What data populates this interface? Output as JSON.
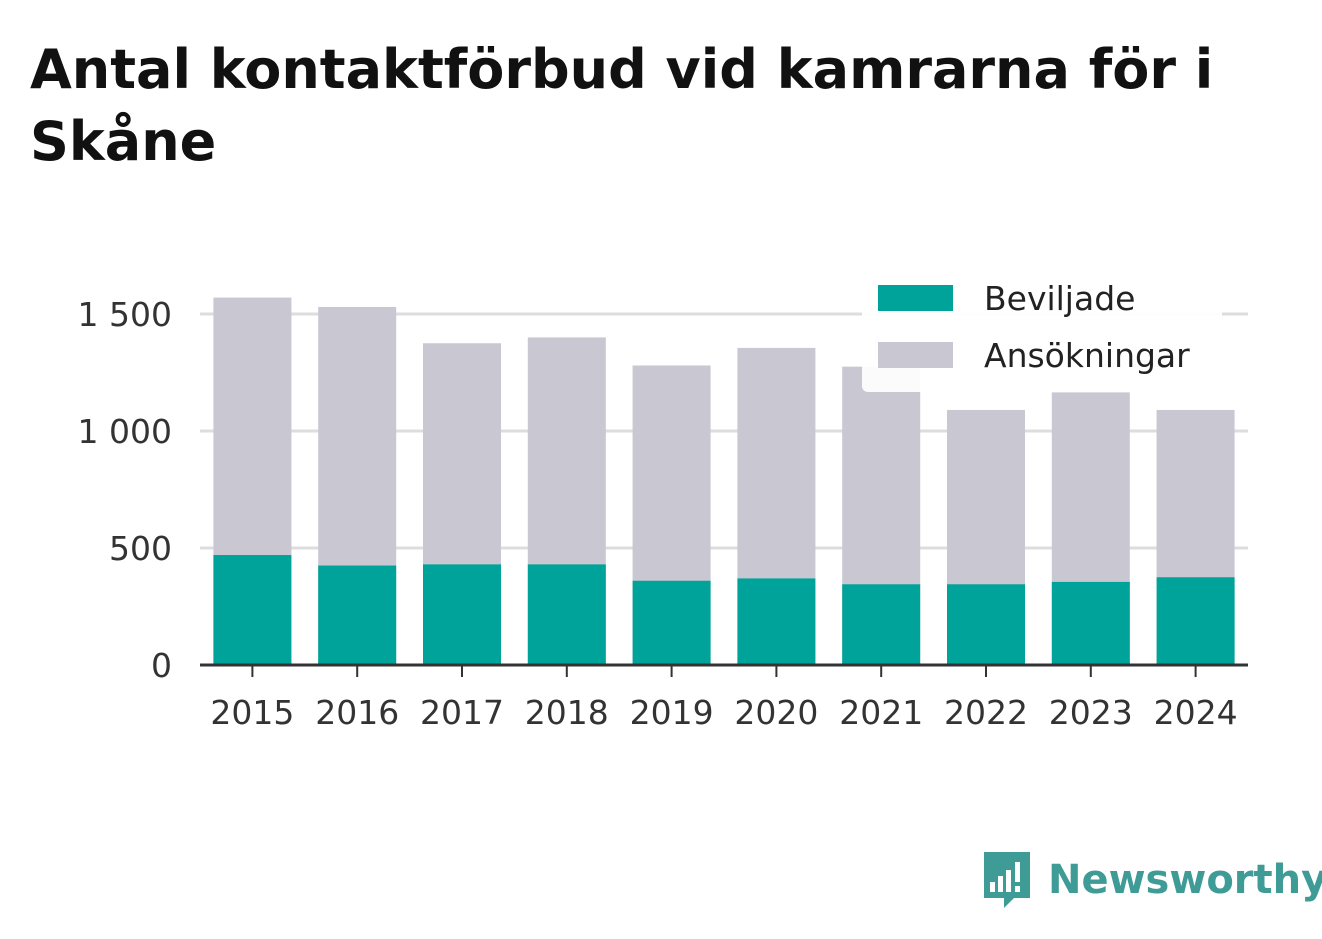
{
  "title": "Antal kontaktförbud vid kamrarna för i Skåne",
  "brand": {
    "name": "Newsworthy",
    "color": "#3e9b96"
  },
  "chart_data": {
    "type": "bar",
    "stacked": false,
    "categories": [
      "2015",
      "2016",
      "2017",
      "2018",
      "2019",
      "2020",
      "2021",
      "2022",
      "2023",
      "2024"
    ],
    "series": [
      {
        "name": "Ansökningar",
        "color": "#c8c7d2",
        "values": [
          1570,
          1530,
          1375,
          1400,
          1280,
          1355,
          1275,
          1090,
          1165,
          1090
        ]
      },
      {
        "name": "Beviljade",
        "color": "#00a39a",
        "values": [
          470,
          425,
          430,
          430,
          360,
          370,
          345,
          345,
          355,
          375
        ]
      }
    ],
    "legend": {
      "position": "top-right",
      "entries": [
        "Beviljade",
        "Ansökningar"
      ]
    },
    "yticks": [
      0,
      500,
      1000,
      1500
    ],
    "ytick_labels": [
      "0",
      "500",
      "1 000",
      "1 500"
    ],
    "ylim": [
      0,
      1600
    ],
    "grid": true,
    "xlabel": "",
    "ylabel": ""
  }
}
